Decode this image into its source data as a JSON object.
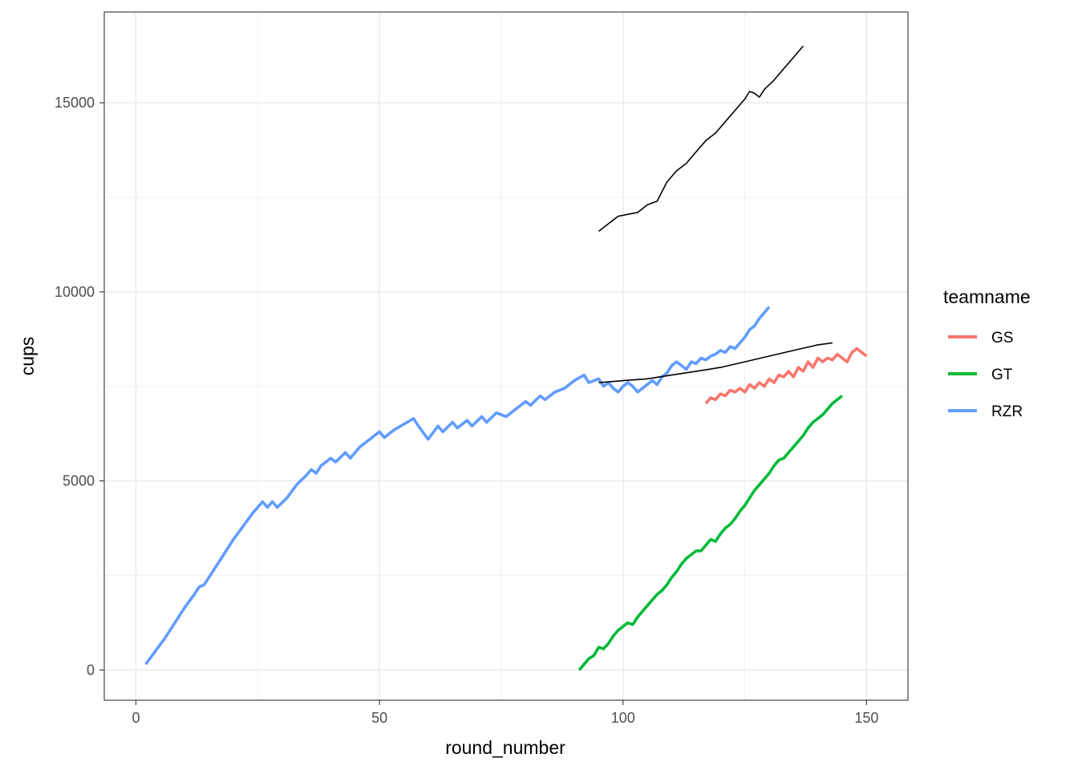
{
  "chart_data": {
    "type": "line",
    "xlabel": "round_number",
    "ylabel": "cups",
    "xlim": [
      -6.5,
      158.5
    ],
    "ylim": [
      -800,
      17400
    ],
    "x_ticks": [
      0,
      50,
      100,
      150
    ],
    "x_tick_labels": [
      "0",
      "50",
      "100",
      "150"
    ],
    "y_ticks": [
      0,
      5000,
      10000,
      15000
    ],
    "y_tick_labels": [
      "0",
      "5000",
      "10000",
      "15000"
    ],
    "grid": true,
    "legend": {
      "title": "teamname",
      "placement": "right"
    },
    "series": [
      {
        "name": "GS",
        "color": "#F8766D",
        "in_legend": true,
        "points": [
          [
            117,
            7050
          ],
          [
            118,
            7200
          ],
          [
            119,
            7150
          ],
          [
            120,
            7300
          ],
          [
            121,
            7250
          ],
          [
            122,
            7400
          ],
          [
            123,
            7350
          ],
          [
            124,
            7450
          ],
          [
            125,
            7350
          ],
          [
            126,
            7550
          ],
          [
            127,
            7450
          ],
          [
            128,
            7600
          ],
          [
            129,
            7500
          ],
          [
            130,
            7700
          ],
          [
            131,
            7600
          ],
          [
            132,
            7800
          ],
          [
            133,
            7750
          ],
          [
            134,
            7900
          ],
          [
            135,
            7750
          ],
          [
            136,
            8000
          ],
          [
            137,
            7900
          ],
          [
            138,
            8150
          ],
          [
            139,
            8000
          ],
          [
            140,
            8250
          ],
          [
            141,
            8150
          ],
          [
            142,
            8250
          ],
          [
            143,
            8200
          ],
          [
            144,
            8350
          ],
          [
            145,
            8250
          ],
          [
            146,
            8150
          ],
          [
            147,
            8400
          ],
          [
            148,
            8500
          ],
          [
            149,
            8400
          ],
          [
            150,
            8300
          ]
        ]
      },
      {
        "name": "GT",
        "color": "#00BA38",
        "in_legend": true,
        "points": [
          [
            91,
            0
          ],
          [
            92,
            150
          ],
          [
            93,
            300
          ],
          [
            94,
            380
          ],
          [
            95,
            600
          ],
          [
            96,
            560
          ],
          [
            97,
            700
          ],
          [
            98,
            900
          ],
          [
            99,
            1050
          ],
          [
            100,
            1150
          ],
          [
            101,
            1250
          ],
          [
            102,
            1200
          ],
          [
            103,
            1400
          ],
          [
            104,
            1550
          ],
          [
            105,
            1700
          ],
          [
            106,
            1850
          ],
          [
            107,
            2000
          ],
          [
            108,
            2100
          ],
          [
            109,
            2250
          ],
          [
            110,
            2450
          ],
          [
            111,
            2600
          ],
          [
            112,
            2800
          ],
          [
            113,
            2950
          ],
          [
            114,
            3050
          ],
          [
            115,
            3150
          ],
          [
            116,
            3150
          ],
          [
            117,
            3300
          ],
          [
            118,
            3450
          ],
          [
            119,
            3400
          ],
          [
            120,
            3600
          ],
          [
            121,
            3750
          ],
          [
            122,
            3850
          ],
          [
            123,
            4000
          ],
          [
            124,
            4200
          ],
          [
            125,
            4350
          ],
          [
            126,
            4550
          ],
          [
            127,
            4750
          ],
          [
            128,
            4900
          ],
          [
            129,
            5050
          ],
          [
            130,
            5200
          ],
          [
            131,
            5400
          ],
          [
            132,
            5550
          ],
          [
            133,
            5600
          ],
          [
            134,
            5750
          ],
          [
            135,
            5900
          ],
          [
            136,
            6050
          ],
          [
            137,
            6200
          ],
          [
            138,
            6400
          ],
          [
            139,
            6550
          ],
          [
            140,
            6650
          ],
          [
            141,
            6750
          ],
          [
            142,
            6900
          ],
          [
            143,
            7050
          ],
          [
            144,
            7150
          ],
          [
            145,
            7250
          ]
        ]
      },
      {
        "name": "RZR",
        "color": "#619CFF",
        "in_legend": true,
        "points": [
          [
            2,
            150
          ],
          [
            4,
            500
          ],
          [
            6,
            850
          ],
          [
            8,
            1250
          ],
          [
            10,
            1650
          ],
          [
            12,
            2000
          ],
          [
            13,
            2200
          ],
          [
            14,
            2250
          ],
          [
            16,
            2650
          ],
          [
            18,
            3050
          ],
          [
            20,
            3450
          ],
          [
            22,
            3800
          ],
          [
            24,
            4150
          ],
          [
            26,
            4450
          ],
          [
            27,
            4300
          ],
          [
            28,
            4450
          ],
          [
            29,
            4300
          ],
          [
            31,
            4550
          ],
          [
            33,
            4900
          ],
          [
            35,
            5150
          ],
          [
            36,
            5300
          ],
          [
            37,
            5200
          ],
          [
            38,
            5400
          ],
          [
            40,
            5600
          ],
          [
            41,
            5500
          ],
          [
            43,
            5750
          ],
          [
            44,
            5600
          ],
          [
            46,
            5900
          ],
          [
            48,
            6100
          ],
          [
            50,
            6300
          ],
          [
            51,
            6150
          ],
          [
            53,
            6350
          ],
          [
            55,
            6500
          ],
          [
            57,
            6650
          ],
          [
            58,
            6450
          ],
          [
            60,
            6100
          ],
          [
            62,
            6450
          ],
          [
            63,
            6300
          ],
          [
            65,
            6550
          ],
          [
            66,
            6400
          ],
          [
            68,
            6600
          ],
          [
            69,
            6450
          ],
          [
            71,
            6700
          ],
          [
            72,
            6550
          ],
          [
            74,
            6800
          ],
          [
            76,
            6700
          ],
          [
            78,
            6900
          ],
          [
            80,
            7100
          ],
          [
            81,
            7000
          ],
          [
            83,
            7250
          ],
          [
            84,
            7150
          ],
          [
            86,
            7350
          ],
          [
            88,
            7450
          ],
          [
            90,
            7650
          ],
          [
            92,
            7800
          ],
          [
            93,
            7600
          ],
          [
            95,
            7700
          ],
          [
            96,
            7500
          ],
          [
            97,
            7600
          ],
          [
            98,
            7450
          ],
          [
            99,
            7350
          ],
          [
            100,
            7500
          ],
          [
            101,
            7600
          ],
          [
            102,
            7500
          ],
          [
            103,
            7350
          ],
          [
            104,
            7450
          ],
          [
            106,
            7650
          ],
          [
            107,
            7550
          ],
          [
            108,
            7750
          ],
          [
            109,
            7850
          ],
          [
            110,
            8050
          ],
          [
            111,
            8150
          ],
          [
            112,
            8050
          ],
          [
            113,
            7950
          ],
          [
            114,
            8150
          ],
          [
            115,
            8100
          ],
          [
            116,
            8250
          ],
          [
            117,
            8200
          ],
          [
            118,
            8300
          ],
          [
            119,
            8350
          ],
          [
            120,
            8450
          ],
          [
            121,
            8400
          ],
          [
            122,
            8550
          ],
          [
            123,
            8500
          ],
          [
            124,
            8650
          ],
          [
            125,
            8800
          ],
          [
            126,
            9000
          ],
          [
            127,
            9100
          ],
          [
            128,
            9300
          ],
          [
            129,
            9450
          ],
          [
            130,
            9600
          ]
        ]
      },
      {
        "name": "",
        "color": "#000000",
        "in_legend": false,
        "points": [
          [
            95,
            11600
          ],
          [
            97,
            11800
          ],
          [
            99,
            12000
          ],
          [
            101,
            12050
          ],
          [
            103,
            12100
          ],
          [
            105,
            12300
          ],
          [
            107,
            12400
          ],
          [
            109,
            12900
          ],
          [
            111,
            13200
          ],
          [
            113,
            13400
          ],
          [
            115,
            13700
          ],
          [
            117,
            14000
          ],
          [
            119,
            14200
          ],
          [
            121,
            14500
          ],
          [
            123,
            14800
          ],
          [
            125,
            15100
          ],
          [
            126,
            15300
          ],
          [
            127,
            15250
          ],
          [
            128,
            15150
          ],
          [
            129,
            15350
          ],
          [
            131,
            15600
          ],
          [
            133,
            15900
          ],
          [
            135,
            16200
          ],
          [
            137,
            16500
          ]
        ]
      },
      {
        "name": "",
        "color": "#000000",
        "in_legend": false,
        "points": [
          [
            95,
            7600
          ],
          [
            100,
            7650
          ],
          [
            105,
            7700
          ],
          [
            110,
            7800
          ],
          [
            115,
            7900
          ],
          [
            120,
            8000
          ],
          [
            125,
            8150
          ],
          [
            130,
            8300
          ],
          [
            135,
            8450
          ],
          [
            140,
            8600
          ],
          [
            143,
            8650
          ]
        ]
      }
    ]
  }
}
